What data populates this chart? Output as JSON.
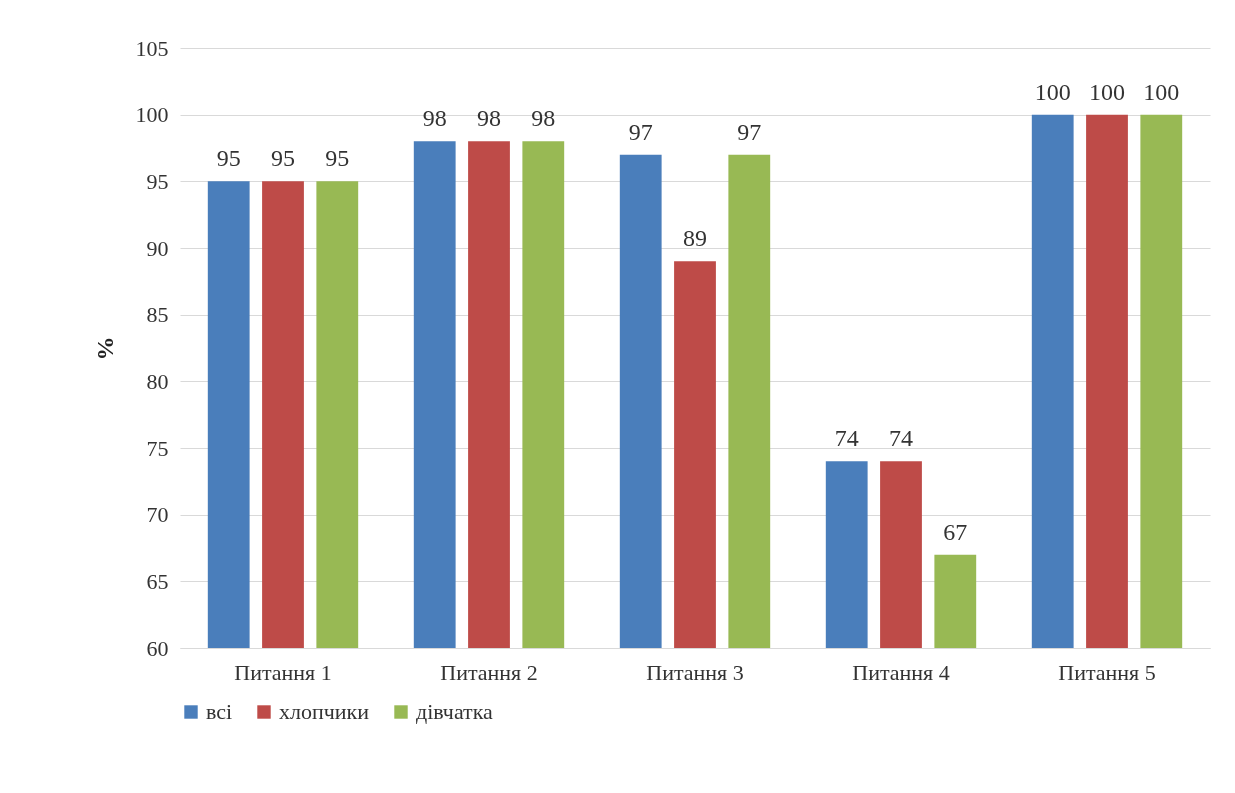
{
  "chart_data": {
    "type": "bar",
    "ylabel": "%",
    "categories": [
      "Питання 1",
      "Питання 2",
      "Питання 3",
      "Питання 4",
      "Питання 5"
    ],
    "series": [
      {
        "name": "всі",
        "color": "#4a7ebb",
        "values": [
          95,
          98,
          97,
          74,
          100
        ]
      },
      {
        "name": "хлопчики",
        "color": "#be4b48",
        "values": [
          95,
          98,
          89,
          74,
          100
        ]
      },
      {
        "name": "дівчатка",
        "color": "#98b954",
        "values": [
          95,
          98,
          97,
          67,
          100
        ]
      }
    ],
    "ylim": [
      60,
      105
    ],
    "yticks": [
      60,
      65,
      70,
      75,
      80,
      85,
      90,
      95,
      100,
      105
    ],
    "grid": "y",
    "legend": "bottom",
    "data_labels": true
  }
}
